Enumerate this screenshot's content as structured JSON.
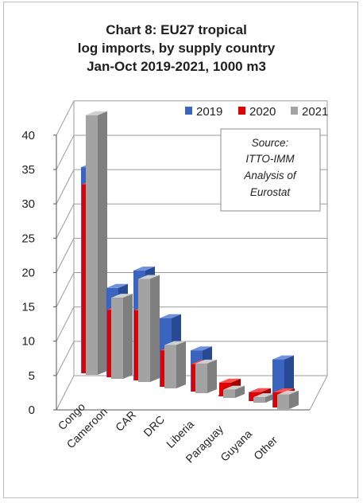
{
  "colors": {
    "2019": {
      "front": "#3a64bf",
      "side": "#284a94",
      "top": "#6f91dd"
    },
    "2020": {
      "front": "#e00000",
      "side": "#a00000",
      "top": "#ff5050"
    },
    "2021": {
      "front": "#a3a3a3",
      "side": "#7f7f7f",
      "top": "#cfcfcf"
    },
    "grid": "#9a9a9a"
  },
  "chart_data": {
    "type": "bar",
    "title": "Chart 8: EU27 tropical log imports, by supply country Jan-Oct 2019-2021, 1000 m3",
    "title_lines": [
      "Chart 8: EU27 tropical",
      "log imports, by supply country",
      "Jan-Oct 2019-2021, 1000 m3"
    ],
    "categories": [
      "Congo",
      "Cameroon",
      "CAR",
      "DRC",
      "Liberia",
      "Paraguay",
      "Guyana",
      "Other"
    ],
    "series": [
      {
        "name": "2019",
        "values": [
          30,
          13,
          16,
          10,
          6,
          0.2,
          1.3,
          7
        ]
      },
      {
        "name": "2020",
        "values": [
          27.5,
          9.8,
          10.2,
          5.3,
          4,
          2,
          1.3,
          2.2
        ]
      },
      {
        "name": "2021",
        "values": [
          37.8,
          11.8,
          15,
          6.3,
          4.3,
          1.2,
          0.8,
          2.1
        ]
      }
    ],
    "yticks": [
      "0",
      "5",
      "10",
      "15",
      "20",
      "25",
      "30",
      "35",
      "40"
    ],
    "ylim": [
      0,
      40
    ],
    "legend_position": "top-right",
    "annotation": [
      "Source:",
      "ITTO-IMM",
      "Analysis of",
      "Eurostat"
    ]
  }
}
